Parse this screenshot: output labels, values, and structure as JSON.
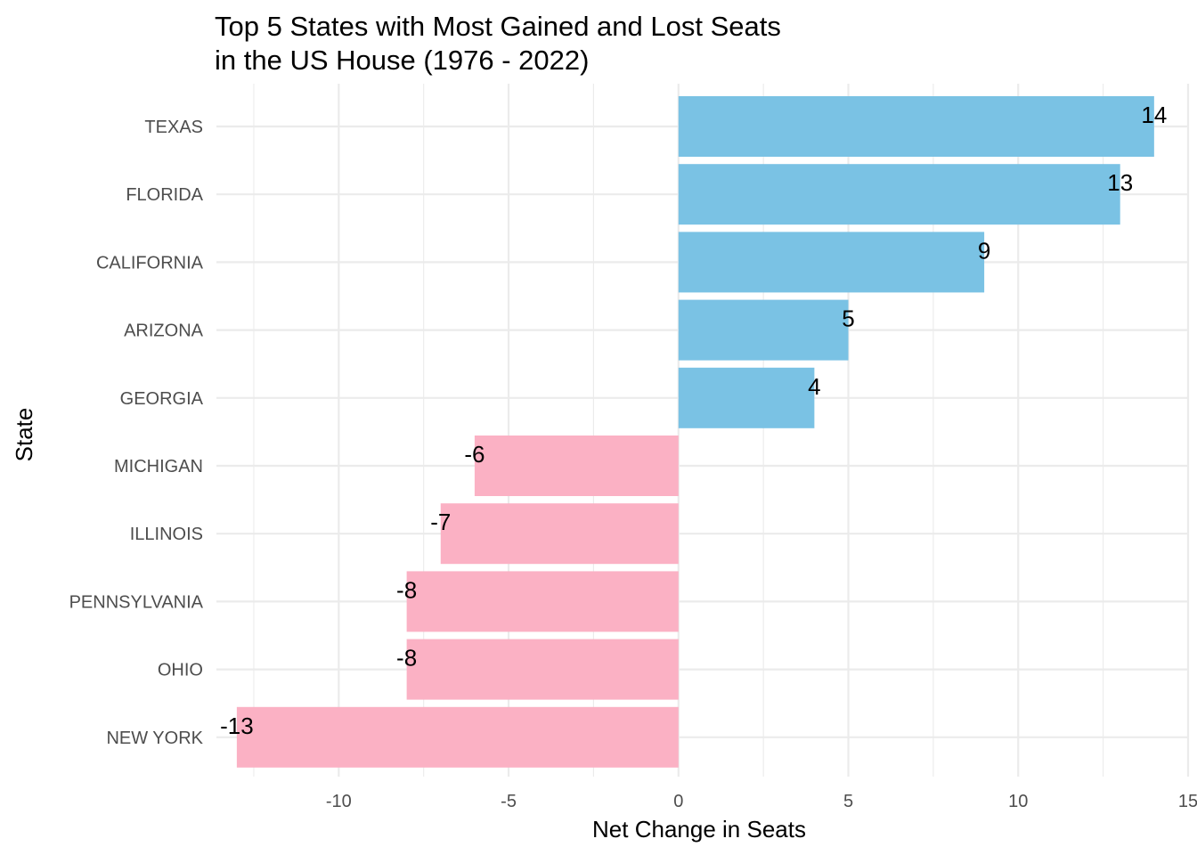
{
  "chart_data": {
    "type": "bar",
    "orientation": "horizontal",
    "title": "Top 5 States with Most Gained and Lost Seats",
    "subtitle": "in the US House (1976 - 2022)",
    "xlabel": "Net Change in Seats",
    "ylabel": "State",
    "categories": [
      "TEXAS",
      "FLORIDA",
      "CALIFORNIA",
      "ARIZONA",
      "GEORGIA",
      "MICHIGAN",
      "ILLINOIS",
      "PENNSYLVANIA",
      "OHIO",
      "NEW YORK"
    ],
    "values": [
      14,
      13,
      9,
      5,
      4,
      -6,
      -7,
      -8,
      -8,
      -13
    ],
    "data_labels": [
      "14",
      "13",
      "9",
      "5",
      "4",
      "-6",
      "-7",
      "-8",
      "-8",
      "-13"
    ],
    "xlim": [
      -13.6,
      15
    ],
    "x_ticks": [
      -10,
      -5,
      0,
      5,
      10,
      15
    ],
    "x_tick_labels": [
      "-10",
      "-5",
      "0",
      "5",
      "10",
      "15"
    ],
    "grid": true,
    "legend": "none",
    "colors": {
      "gained": "#7ac2e4",
      "lost": "#fbb1c4"
    }
  }
}
